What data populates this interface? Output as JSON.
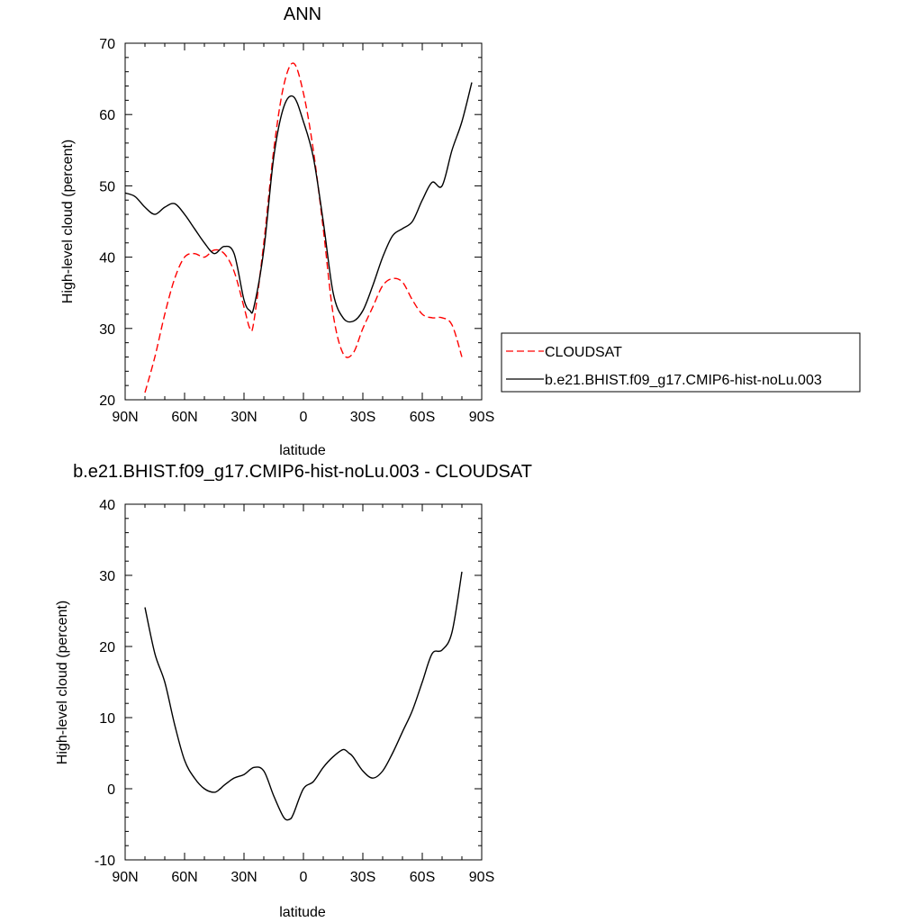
{
  "chart_data": [
    {
      "type": "line",
      "title": "ANN",
      "xlabel": "latitude",
      "ylabel": "High-level cloud (percent)",
      "xlim": [
        -90,
        90
      ],
      "ylim": [
        20,
        70
      ],
      "yticks": [
        20,
        30,
        40,
        50,
        60,
        70
      ],
      "xticks": [
        {
          "value": -90,
          "label": "90N"
        },
        {
          "value": -60,
          "label": "60N"
        },
        {
          "value": -30,
          "label": "30N"
        },
        {
          "value": 0,
          "label": "0"
        },
        {
          "value": 30,
          "label": "30S"
        },
        {
          "value": 60,
          "label": "60S"
        },
        {
          "value": 90,
          "label": "90S"
        }
      ],
      "legend": "right",
      "series": [
        {
          "name": "CLOUDSAT",
          "color": "#ff0000",
          "dash": "dashed",
          "x": [
            -80,
            -75,
            -70,
            -65,
            -60,
            -55,
            -50,
            -45,
            -40,
            -35,
            -30,
            -27,
            -25,
            -20,
            -15,
            -10,
            -5,
            0,
            5,
            10,
            15,
            20,
            25,
            30,
            35,
            40,
            45,
            50,
            55,
            60,
            65,
            70,
            75,
            80
          ],
          "values": [
            21,
            26,
            32,
            37,
            40,
            40.5,
            40,
            41,
            40.5,
            38,
            33,
            30,
            31,
            42,
            55,
            64,
            67.2,
            63,
            55,
            44,
            32,
            26.5,
            26.5,
            30,
            33,
            36,
            37,
            36.5,
            34,
            32,
            31.5,
            31.5,
            30.5,
            26
          ]
        },
        {
          "name": "b.e21.BHIST.f09_g17.CMIP6-hist-noLu.003",
          "color": "#000000",
          "dash": "solid",
          "x": [
            -90,
            -85,
            -80,
            -75,
            -70,
            -65,
            -60,
            -55,
            -50,
            -45,
            -40,
            -35,
            -30,
            -27,
            -25,
            -20,
            -15,
            -10,
            -5,
            0,
            5,
            10,
            15,
            20,
            25,
            30,
            35,
            40,
            45,
            50,
            55,
            60,
            65,
            70,
            75,
            80,
            85
          ],
          "values": [
            49,
            48.5,
            47,
            46,
            47,
            47.5,
            46,
            44,
            42,
            40.5,
            41.5,
            40.5,
            34,
            32.5,
            33,
            41,
            54,
            61,
            62.5,
            59,
            54,
            45,
            35,
            31.5,
            31,
            32.5,
            36,
            40,
            43,
            44,
            45,
            48,
            50.5,
            50,
            55,
            59,
            64.5
          ]
        }
      ]
    },
    {
      "type": "line",
      "title": "b.e21.BHIST.f09_g17.CMIP6-hist-noLu.003 - CLOUDSAT",
      "xlabel": "latitude",
      "ylabel": "High-level cloud (percent)",
      "xlim": [
        -90,
        90
      ],
      "ylim": [
        -10,
        40
      ],
      "yticks": [
        -10,
        0,
        10,
        20,
        30,
        40
      ],
      "xticks": [
        {
          "value": -90,
          "label": "90N"
        },
        {
          "value": -60,
          "label": "60N"
        },
        {
          "value": -30,
          "label": "30N"
        },
        {
          "value": 0,
          "label": "0"
        },
        {
          "value": 30,
          "label": "30S"
        },
        {
          "value": 60,
          "label": "60S"
        },
        {
          "value": 90,
          "label": "90S"
        }
      ],
      "series": [
        {
          "color": "#000000",
          "dash": "solid",
          "x": [
            -80,
            -75,
            -70,
            -65,
            -60,
            -55,
            -50,
            -45,
            -42,
            -40,
            -35,
            -30,
            -25,
            -20,
            -15,
            -10,
            -7,
            -5,
            0,
            5,
            10,
            15,
            20,
            23,
            25,
            30,
            35,
            40,
            45,
            50,
            55,
            60,
            65,
            70,
            75,
            80
          ],
          "values": [
            25.5,
            19,
            15,
            9,
            4,
            1.5,
            0,
            -0.5,
            0,
            0.5,
            1.5,
            2,
            3,
            2.5,
            -1,
            -4,
            -4.3,
            -3.5,
            0,
            1,
            3,
            4.5,
            5.5,
            5,
            4.5,
            2.5,
            1.5,
            2.5,
            5,
            8,
            11,
            15,
            19,
            19.5,
            22,
            30.5
          ]
        }
      ]
    }
  ]
}
